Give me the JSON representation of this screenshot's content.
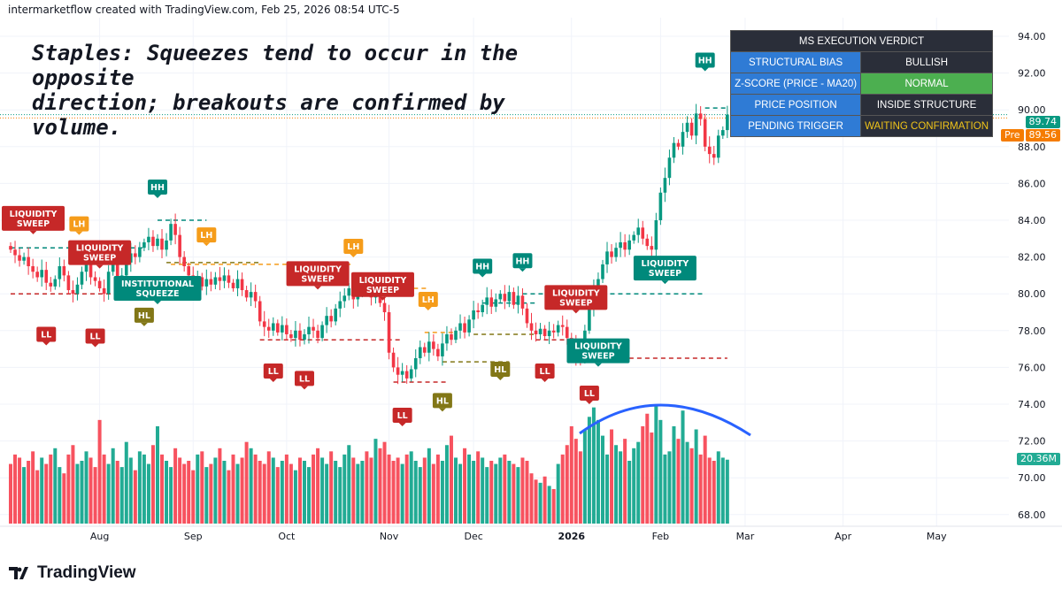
{
  "credit": "intermarketflow created with TradingView.com, Feb 25, 2026 08:54 UTC-5",
  "headline_line1": "Staples: Squeezes tend to occur in the opposite",
  "headline_line2": "direction; breakouts are confirmed by volume.",
  "logo_text": "TradingView",
  "verdict_table": {
    "title": "MS EXECUTION VERDICT",
    "rows": [
      {
        "label": "STRUCTURAL BIAS",
        "value": "BULLISH",
        "style": "dark"
      },
      {
        "label": "Z-SCORE (PRICE - MA20)",
        "value": "NORMAL",
        "style": "green"
      },
      {
        "label": "PRICE POSITION",
        "value": "INSIDE STRUCTURE",
        "style": "dark"
      },
      {
        "label": "PENDING TRIGGER",
        "value": "WAITING CONFIRMATION",
        "style": "yellow"
      }
    ]
  },
  "price_tags": {
    "last": "89.74",
    "pre_label": "Pre",
    "pre": "89.56",
    "volume": "20.36M"
  },
  "colors": {
    "up": "#089981",
    "down": "#f23645",
    "vol_up": "#22ab94",
    "vol_down": "#f7525f",
    "ll": "#c62828",
    "hl": "#827717",
    "hh": "#00897b",
    "lh": "#f59c1a",
    "arc": "#2962ff"
  },
  "chart_data": {
    "type": "candlestick",
    "y_ticks": [
      "94.00",
      "92.00",
      "90.00",
      "88.00",
      "86.00",
      "84.00",
      "82.00",
      "80.00",
      "78.00",
      "76.00",
      "74.00",
      "72.00",
      "70.00",
      "68.00"
    ],
    "ylim": [
      68,
      94
    ],
    "x_ticks": [
      {
        "label": "Aug",
        "index": 20
      },
      {
        "label": "Sep",
        "index": 41
      },
      {
        "label": "Oct",
        "index": 62
      },
      {
        "label": "Nov",
        "index": 85
      },
      {
        "label": "Dec",
        "index": 104
      },
      {
        "label": "2026",
        "index": 126,
        "bold": true
      },
      {
        "label": "Feb",
        "index": 146
      },
      {
        "label": "Mar",
        "index": 165
      },
      {
        "label": "Apr",
        "index": 187
      },
      {
        "label": "May",
        "index": 208
      }
    ],
    "closes": [
      82.4,
      82.1,
      81.8,
      82.0,
      81.5,
      81.2,
      80.9,
      81.3,
      80.6,
      80.4,
      80.8,
      81.5,
      81.0,
      80.2,
      80.0,
      80.5,
      81.2,
      81.6,
      80.9,
      80.7,
      80.3,
      80.0,
      81.2,
      81.8,
      80.5,
      81.0,
      81.7,
      82.2,
      82.0,
      82.5,
      82.8,
      83.1,
      82.6,
      83.0,
      82.4,
      82.9,
      83.8,
      83.2,
      82.0,
      81.5,
      81.0,
      80.6,
      80.9,
      80.4,
      80.8,
      80.5,
      80.9,
      80.7,
      81.0,
      80.6,
      80.3,
      80.8,
      80.2,
      79.8,
      80.1,
      79.6,
      78.5,
      78.2,
      78.0,
      78.4,
      77.9,
      78.3,
      77.8,
      77.6,
      78.0,
      77.5,
      77.8,
      78.2,
      78.0,
      77.6,
      78.3,
      78.8,
      78.5,
      79.2,
      79.6,
      79.9,
      80.3,
      79.7,
      80.1,
      80.6,
      80.2,
      79.8,
      80.4,
      79.5,
      79.0,
      76.8,
      76.0,
      75.6,
      75.8,
      75.4,
      75.9,
      76.5,
      77.1,
      76.8,
      77.4,
      77.0,
      76.6,
      77.3,
      77.8,
      77.5,
      78.0,
      78.4,
      77.9,
      78.6,
      79.1,
      79.0,
      79.4,
      79.8,
      79.3,
      79.7,
      80.0,
      79.6,
      80.1,
      79.4,
      79.9,
      79.2,
      78.4,
      78.0,
      77.8,
      78.1,
      77.7,
      78.0,
      77.9,
      78.3,
      78.2,
      77.6,
      77.2,
      76.6,
      76.5,
      78.0,
      79.2,
      80.3,
      80.8,
      81.6,
      82.3,
      82.0,
      82.5,
      82.8,
      82.4,
      82.9,
      83.2,
      83.6,
      83.0,
      82.6,
      82.4,
      84.0,
      85.5,
      86.3,
      87.4,
      88.2,
      88.0,
      88.8,
      89.3,
      88.6,
      89.8,
      89.5,
      88.0,
      87.6,
      87.4,
      88.6,
      88.9,
      89.74
    ],
    "first_open": 82.6,
    "volumes_millions": [
      19,
      22,
      21,
      18,
      20,
      23,
      17,
      21,
      19,
      22,
      24,
      18,
      16,
      22,
      25,
      19,
      20,
      23,
      21,
      18,
      33,
      22,
      19,
      24,
      20,
      18,
      26,
      21,
      17,
      23,
      22,
      19,
      25,
      31,
      22,
      20,
      18,
      24,
      21,
      19,
      20,
      17,
      22,
      23,
      18,
      19,
      21,
      24,
      20,
      17,
      22,
      19,
      21,
      26,
      24,
      22,
      20,
      19,
      23,
      21,
      18,
      20,
      22,
      19,
      17,
      21,
      20,
      18,
      22,
      24,
      21,
      19,
      23,
      20,
      18,
      22,
      25,
      21,
      19,
      20,
      23,
      21,
      27,
      24,
      26,
      22,
      20,
      21,
      19,
      22,
      23,
      20,
      18,
      21,
      24,
      19,
      22,
      20,
      25,
      28,
      21,
      19,
      24,
      22,
      20,
      23,
      21,
      18,
      20,
      19,
      21,
      22,
      20,
      19,
      18,
      21,
      20,
      16,
      14,
      13,
      15,
      12,
      11,
      19,
      22,
      25,
      31,
      27,
      23,
      30,
      34,
      37,
      33,
      28,
      22,
      30,
      25,
      23,
      27,
      20,
      24,
      26,
      31,
      35,
      29,
      38,
      33,
      22,
      23,
      31,
      27,
      36,
      26,
      24,
      30,
      22,
      28,
      21,
      20,
      23,
      21,
      20.36
    ],
    "annotations": [
      {
        "text": "LIQUIDITY SWEEP",
        "kind": "ll",
        "index": 3,
        "price": 84.1
      },
      {
        "text": "LH",
        "kind": "lh",
        "index": 13,
        "price": 83.8
      },
      {
        "text": "LIQUIDITY SWEEP",
        "kind": "ll",
        "index": 20,
        "price": 83.2
      },
      {
        "text": "HH",
        "kind": "hh",
        "index": 33,
        "price": 85.8
      },
      {
        "text": "LH",
        "kind": "lh",
        "index": 44,
        "price": 83.2
      },
      {
        "text": "INSTITUTIONAL SQUEEZE",
        "kind": "hh",
        "index": 33,
        "price": 80.3
      },
      {
        "text": "HL",
        "kind": "hl",
        "index": 30,
        "price": 79.8
      },
      {
        "text": "LL",
        "kind": "ll",
        "index": 8,
        "price": 77.8
      },
      {
        "text": "LL",
        "kind": "ll",
        "index": 19,
        "price": 77.7
      },
      {
        "text": "LL",
        "kind": "ll",
        "index": 59,
        "price": 75.8
      },
      {
        "text": "LL",
        "kind": "ll",
        "index": 66,
        "price": 75.4
      },
      {
        "text": "LIQUIDITY SWEEP",
        "kind": "ll",
        "index": 69,
        "price": 81.1
      },
      {
        "text": "LH",
        "kind": "lh",
        "index": 77,
        "price": 82.2
      },
      {
        "text": "LIQUIDITY SWEEP",
        "kind": "ll",
        "index": 82,
        "price": 80.5
      },
      {
        "text": "LL",
        "kind": "ll",
        "index": 88,
        "price": 73.4
      },
      {
        "text": "HL",
        "kind": "hl",
        "index": 97,
        "price": 74.2
      },
      {
        "text": "LH",
        "kind": "lh",
        "index": 93,
        "price": 79.7
      },
      {
        "text": "HH",
        "kind": "hh",
        "index": 106,
        "price": 81.5
      },
      {
        "text": "HH",
        "kind": "hh",
        "index": 115,
        "price": 81.8
      },
      {
        "text": "HL",
        "kind": "hl",
        "index": 110,
        "price": 75.9
      },
      {
        "text": "LL",
        "kind": "ll",
        "index": 120,
        "price": 75.8
      },
      {
        "text": "LIQUIDITY SWEEP",
        "kind": "ll",
        "index": 127,
        "price": 79.8
      },
      {
        "text": "LIQUIDITY SWEEP",
        "kind": "hh",
        "index": 132,
        "price": 76.9
      },
      {
        "text": "LL",
        "kind": "ll",
        "index": 130,
        "price": 74.6
      },
      {
        "text": "LIQUIDITY SWEEP",
        "kind": "hh",
        "index": 147,
        "price": 81.4
      },
      {
        "text": "HH",
        "kind": "hh",
        "index": 156,
        "price": 92.7
      }
    ],
    "levels": [
      {
        "price": 82.5,
        "from": 0,
        "to": 30,
        "kind": "hh"
      },
      {
        "price": 84.0,
        "from": 33,
        "to": 44,
        "kind": "hh"
      },
      {
        "price": 81.6,
        "from": 36,
        "to": 77,
        "kind": "lh"
      },
      {
        "price": 81.7,
        "from": 35,
        "to": 56,
        "kind": "hl"
      },
      {
        "price": 80.0,
        "from": 0,
        "to": 27,
        "kind": "ll"
      },
      {
        "price": 80.3,
        "from": 78,
        "to": 94,
        "kind": "lh"
      },
      {
        "price": 77.5,
        "from": 56,
        "to": 88,
        "kind": "ll"
      },
      {
        "price": 75.2,
        "from": 86,
        "to": 98,
        "kind": "ll"
      },
      {
        "price": 76.3,
        "from": 97,
        "to": 112,
        "kind": "hl"
      },
      {
        "price": 77.9,
        "from": 93,
        "to": 100,
        "kind": "lh"
      },
      {
        "price": 79.5,
        "from": 106,
        "to": 118,
        "kind": "hh"
      },
      {
        "price": 80.0,
        "from": 115,
        "to": 156,
        "kind": "hh"
      },
      {
        "price": 77.8,
        "from": 104,
        "to": 118,
        "kind": "hl"
      },
      {
        "price": 77.5,
        "from": 118,
        "to": 130,
        "kind": "ll"
      },
      {
        "price": 76.5,
        "from": 130,
        "to": 161,
        "kind": "ll"
      },
      {
        "price": 90.1,
        "from": 156,
        "to": 161,
        "kind": "hh"
      }
    ]
  }
}
